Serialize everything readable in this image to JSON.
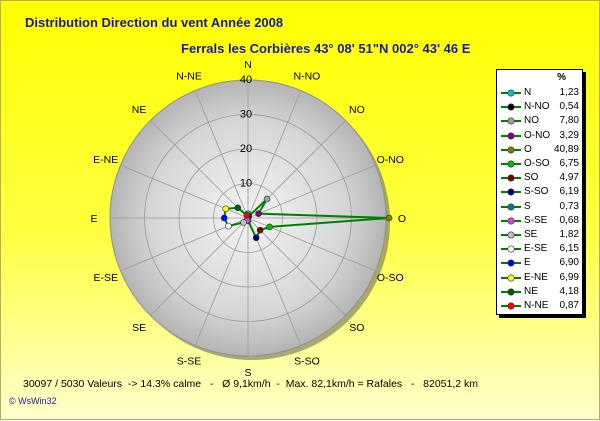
{
  "chart_data": {
    "type": "radar",
    "title": "Distribution Direction du vent   Année 2008",
    "subtitle": "Ferrals les Corbières 43° 08' 51\"N  002° 43' 46 E",
    "radial_ticks": [
      10,
      20,
      30,
      40
    ],
    "radial_max": 40,
    "legend_header": "%",
    "legend_position": "right",
    "series": [
      {
        "name": "N",
        "value": 1.23,
        "display": "1,23",
        "color": "#00c8c8"
      },
      {
        "name": "N-NO",
        "value": 0.54,
        "display": "0,54",
        "color": "#000000"
      },
      {
        "name": "NO",
        "value": 7.8,
        "display": "7,80",
        "color": "#a0a0a0"
      },
      {
        "name": "O-NO",
        "value": 3.29,
        "display": "3,29",
        "color": "#800080"
      },
      {
        "name": "O",
        "value": 40.89,
        "display": "40,89",
        "color": "#808000"
      },
      {
        "name": "O-SO",
        "value": 6.75,
        "display": "6,75",
        "color": "#00c000"
      },
      {
        "name": "SO",
        "value": 4.97,
        "display": "4,97",
        "color": "#800000"
      },
      {
        "name": "S-SO",
        "value": 6.19,
        "display": "6,19",
        "color": "#000080"
      },
      {
        "name": "S",
        "value": 0.73,
        "display": "0,73",
        "color": "#008080"
      },
      {
        "name": "S-SE",
        "value": 0.68,
        "display": "0,68",
        "color": "#e040e0"
      },
      {
        "name": "SE",
        "value": 1.82,
        "display": "1,82",
        "color": "#c0c0c0"
      },
      {
        "name": "E-SE",
        "value": 6.15,
        "display": "6,15",
        "color": "#ffffff"
      },
      {
        "name": "E",
        "value": 6.9,
        "display": "6,90",
        "color": "#0000ff"
      },
      {
        "name": "E-NE",
        "value": 6.99,
        "display": "6,99",
        "color": "#ffff00"
      },
      {
        "name": "NE",
        "value": 4.18,
        "display": "4,18",
        "color": "#006000"
      },
      {
        "name": "N-NE",
        "value": 0.87,
        "display": "0,87",
        "color": "#ff0000"
      }
    ],
    "line_color": "#008000",
    "grid": true
  },
  "footer": "30097 / 5030 Valeurs  -> 14.3% calme   -   Ø 9,1km/h  -  Max. 82,1km/h = Rafales   -   82051,2 km",
  "credit": "© WsWin32"
}
